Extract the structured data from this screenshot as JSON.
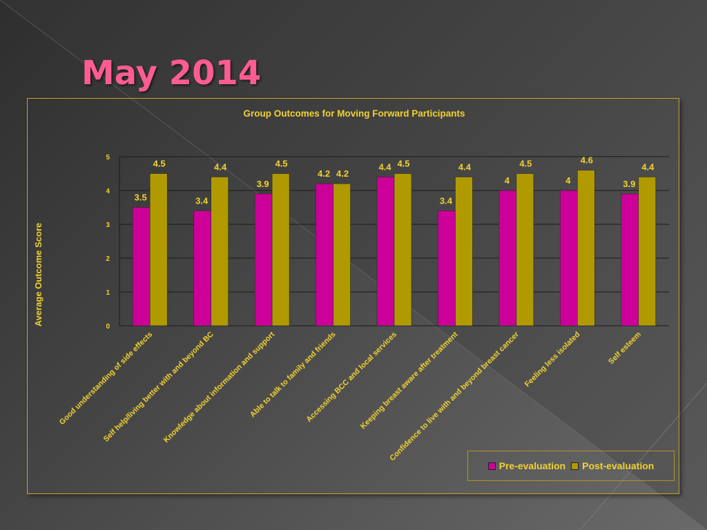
{
  "slide": {
    "title": "May 2014"
  },
  "colors": {
    "pre": "#cc0099",
    "post": "#b09a00",
    "text": "#f2d230",
    "title": "#ff5c93"
  },
  "chart_data": {
    "type": "bar",
    "title": "Group Outcomes for Moving Forward Participants",
    "ylabel": "Average Outcome Score",
    "xlabel": "",
    "ylim": [
      0,
      5
    ],
    "yticks": [
      "0",
      "1",
      "2",
      "3",
      "4",
      "5"
    ],
    "grid": true,
    "legend_position": "bottom-right",
    "categories": [
      "Good understanding of side effects",
      "Self help/living better with and beyond BC",
      "Knowledge about information and support",
      "Able to talk to family and friends",
      "Accessing BCC and local services",
      "Keeping breast aware after treatment",
      "Confidence to live with and beyond breast cancer",
      "Feeling less isolated",
      "Self esteem"
    ],
    "series": [
      {
        "name": "Pre-evaluation",
        "values": [
          3.5,
          3.4,
          3.9,
          4.2,
          4.4,
          3.4,
          4,
          4,
          3.9
        ]
      },
      {
        "name": "Post-evaluation",
        "values": [
          4.5,
          4.4,
          4.5,
          4.2,
          4.5,
          4.4,
          4.5,
          4.6,
          4.4
        ]
      }
    ]
  }
}
